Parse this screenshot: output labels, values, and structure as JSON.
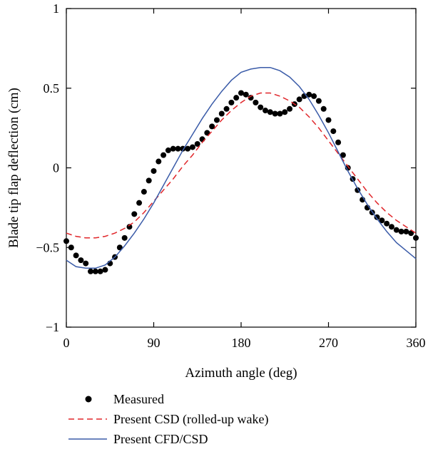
{
  "chart_data": {
    "type": "line",
    "title": "",
    "xlabel": "Azimuth angle (deg)",
    "ylabel": "Blade tip flap deflection (cm)",
    "xlim": [
      0,
      360
    ],
    "ylim": [
      -1,
      1
    ],
    "xticks": [
      0,
      90,
      180,
      270,
      360
    ],
    "xtick_labels": [
      "0",
      "90",
      "180",
      "270",
      "360"
    ],
    "yticks": [
      -1,
      -0.5,
      0,
      0.5,
      1
    ],
    "ytick_labels": [
      "−1",
      "−0.5",
      "0",
      "0.5",
      "1"
    ],
    "grid": false,
    "legend_position": "bottom-left, below plot",
    "series": [
      {
        "name": "Measured",
        "style": "markers",
        "color": "#000000",
        "x": [
          0,
          5,
          10,
          15,
          20,
          25,
          30,
          35,
          40,
          45,
          50,
          55,
          60,
          65,
          70,
          75,
          80,
          85,
          90,
          95,
          100,
          105,
          110,
          115,
          120,
          125,
          130,
          135,
          140,
          145,
          150,
          155,
          160,
          165,
          170,
          175,
          180,
          185,
          190,
          195,
          200,
          205,
          210,
          215,
          220,
          225,
          230,
          235,
          240,
          245,
          250,
          255,
          260,
          265,
          270,
          275,
          280,
          285,
          290,
          295,
          300,
          305,
          310,
          315,
          320,
          325,
          330,
          335,
          340,
          345,
          350,
          355,
          360
        ],
        "y": [
          -0.46,
          -0.5,
          -0.55,
          -0.58,
          -0.6,
          -0.65,
          -0.65,
          -0.65,
          -0.64,
          -0.6,
          -0.56,
          -0.5,
          -0.44,
          -0.37,
          -0.29,
          -0.22,
          -0.15,
          -0.08,
          -0.02,
          0.04,
          0.08,
          0.11,
          0.12,
          0.12,
          0.12,
          0.12,
          0.13,
          0.15,
          0.18,
          0.22,
          0.26,
          0.3,
          0.34,
          0.37,
          0.41,
          0.44,
          0.47,
          0.46,
          0.44,
          0.41,
          0.38,
          0.36,
          0.35,
          0.34,
          0.34,
          0.35,
          0.37,
          0.4,
          0.43,
          0.45,
          0.46,
          0.45,
          0.42,
          0.37,
          0.3,
          0.23,
          0.16,
          0.08,
          0.0,
          -0.07,
          -0.14,
          -0.2,
          -0.25,
          -0.28,
          -0.31,
          -0.33,
          -0.35,
          -0.37,
          -0.39,
          -0.4,
          -0.4,
          -0.41,
          -0.44
        ]
      },
      {
        "name": "Present CSD (rolled-up wake)",
        "style": "dashed",
        "color": "#e0262a",
        "x": [
          0,
          10,
          20,
          30,
          40,
          50,
          60,
          70,
          80,
          90,
          100,
          110,
          120,
          130,
          140,
          150,
          160,
          170,
          180,
          190,
          200,
          210,
          220,
          230,
          240,
          250,
          260,
          270,
          280,
          290,
          300,
          310,
          320,
          330,
          340,
          350,
          360
        ],
        "y": [
          -0.41,
          -0.43,
          -0.44,
          -0.44,
          -0.43,
          -0.41,
          -0.38,
          -0.34,
          -0.28,
          -0.21,
          -0.14,
          -0.07,
          0.01,
          0.08,
          0.16,
          0.23,
          0.3,
          0.36,
          0.41,
          0.45,
          0.47,
          0.47,
          0.45,
          0.42,
          0.38,
          0.32,
          0.25,
          0.17,
          0.09,
          0.01,
          -0.07,
          -0.15,
          -0.22,
          -0.28,
          -0.33,
          -0.37,
          -0.41
        ]
      },
      {
        "name": "Present CFD/CSD",
        "style": "solid",
        "color": "#3a5ba8",
        "x": [
          0,
          10,
          20,
          30,
          40,
          50,
          60,
          70,
          80,
          90,
          100,
          110,
          120,
          130,
          140,
          150,
          160,
          170,
          180,
          190,
          200,
          210,
          220,
          230,
          240,
          250,
          260,
          270,
          280,
          290,
          300,
          310,
          320,
          330,
          340,
          350,
          360
        ],
        "y": [
          -0.58,
          -0.62,
          -0.63,
          -0.63,
          -0.61,
          -0.56,
          -0.49,
          -0.41,
          -0.32,
          -0.22,
          -0.11,
          0.0,
          0.11,
          0.21,
          0.31,
          0.4,
          0.48,
          0.55,
          0.6,
          0.62,
          0.63,
          0.63,
          0.61,
          0.57,
          0.51,
          0.43,
          0.33,
          0.22,
          0.1,
          -0.02,
          -0.13,
          -0.23,
          -0.32,
          -0.4,
          -0.47,
          -0.52,
          -0.57
        ]
      }
    ]
  }
}
